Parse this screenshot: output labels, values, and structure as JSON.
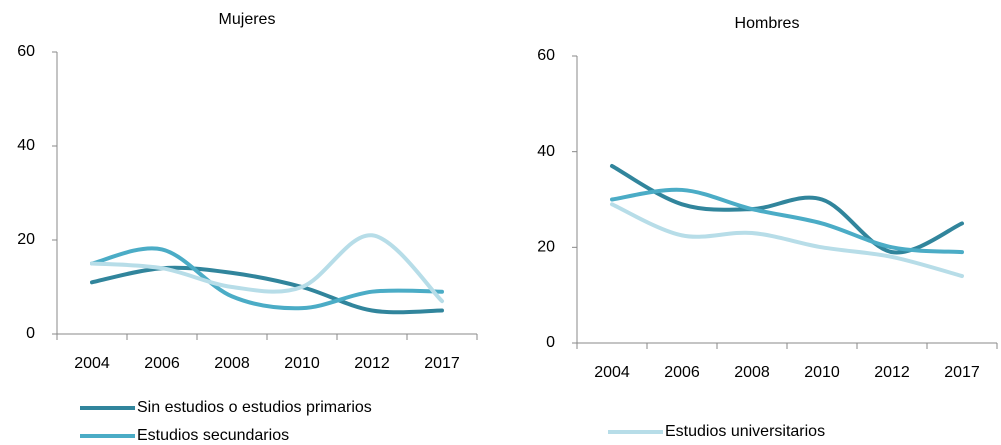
{
  "chart_data": [
    {
      "type": "line",
      "title": "Mujeres",
      "categories": [
        "2004",
        "2006",
        "2008",
        "2010",
        "2012",
        "2017"
      ],
      "ylim": [
        0,
        60
      ],
      "yticks": [
        0,
        20,
        40,
        60
      ],
      "grid": false,
      "smooth": true,
      "series": [
        {
          "name": "Sin estudios o estudios primarios",
          "color": "#31859c",
          "values": [
            11,
            14,
            13,
            10,
            5,
            5
          ]
        },
        {
          "name": "Estudios secundarios",
          "color": "#4bacc6",
          "values": [
            15,
            18,
            8,
            5.5,
            9,
            9
          ]
        },
        {
          "name": "Estudios universitarios",
          "color": "#b7dde8",
          "values": [
            15,
            14,
            10,
            10,
            21,
            7
          ]
        }
      ]
    },
    {
      "type": "line",
      "title": "Hombres",
      "categories": [
        "2004",
        "2006",
        "2008",
        "2010",
        "2012",
        "2017"
      ],
      "ylim": [
        0,
        60
      ],
      "yticks": [
        0,
        20,
        40,
        60
      ],
      "grid": false,
      "smooth": true,
      "series": [
        {
          "name": "Sin estudios o estudios primarios",
          "color": "#31859c",
          "values": [
            37,
            29,
            28,
            30,
            19,
            25
          ]
        },
        {
          "name": "Estudios secundarios",
          "color": "#4bacc6",
          "values": [
            30,
            32,
            28,
            25,
            20,
            19
          ]
        },
        {
          "name": "Estudios universitarios",
          "color": "#b7dde8",
          "values": [
            29,
            22.5,
            23,
            20,
            18,
            14
          ]
        }
      ]
    }
  ]
}
